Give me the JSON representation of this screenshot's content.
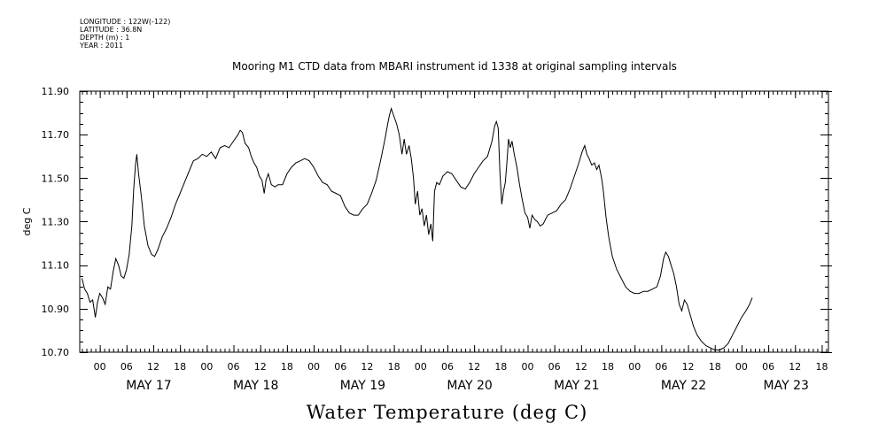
{
  "meta": {
    "longitude": "LONGITUDE : 122W(-122)",
    "latitude": "LATITUDE : 36.8N",
    "depth": "DEPTH (m) : 1",
    "year": "YEAR : 2011"
  },
  "chart_data": {
    "type": "line",
    "title": "Mooring M1 CTD data from MBARI instrument id 1338 at original sampling intervals",
    "xlabel": "Water Temperature (deg C)",
    "ylabel": "deg C",
    "ylim": [
      10.7,
      11.9
    ],
    "xlim_hours_from_may16_0000": [
      19.5,
      187.5
    ],
    "y_ticks": [
      "10.70",
      "10.90",
      "11.10",
      "11.30",
      "11.50",
      "11.70",
      "11.90"
    ],
    "hour_ticks": [
      {
        "hour": 24,
        "label": "00"
      },
      {
        "hour": 30,
        "label": "06"
      },
      {
        "hour": 36,
        "label": "12"
      },
      {
        "hour": 42,
        "label": "18"
      },
      {
        "hour": 48,
        "label": "00"
      },
      {
        "hour": 54,
        "label": "06"
      },
      {
        "hour": 60,
        "label": "12"
      },
      {
        "hour": 66,
        "label": "18"
      },
      {
        "hour": 72,
        "label": "00"
      },
      {
        "hour": 78,
        "label": "06"
      },
      {
        "hour": 84,
        "label": "12"
      },
      {
        "hour": 90,
        "label": "18"
      },
      {
        "hour": 96,
        "label": "00"
      },
      {
        "hour": 102,
        "label": "06"
      },
      {
        "hour": 108,
        "label": "12"
      },
      {
        "hour": 114,
        "label": "18"
      },
      {
        "hour": 120,
        "label": "00"
      },
      {
        "hour": 126,
        "label": "06"
      },
      {
        "hour": 132,
        "label": "12"
      },
      {
        "hour": 138,
        "label": "18"
      },
      {
        "hour": 144,
        "label": "00"
      },
      {
        "hour": 150,
        "label": "06"
      },
      {
        "hour": 156,
        "label": "12"
      },
      {
        "hour": 162,
        "label": "18"
      },
      {
        "hour": 168,
        "label": "00"
      },
      {
        "hour": 174,
        "label": "06"
      },
      {
        "hour": 180,
        "label": "12"
      },
      {
        "hour": 186,
        "label": "18"
      }
    ],
    "day_labels": [
      {
        "hour": 35,
        "label": "MAY 17"
      },
      {
        "hour": 59,
        "label": "MAY 18"
      },
      {
        "hour": 83,
        "label": "MAY 19"
      },
      {
        "hour": 107,
        "label": "MAY 20"
      },
      {
        "hour": 131,
        "label": "MAY 21"
      },
      {
        "hour": 155,
        "label": "MAY 22"
      },
      {
        "hour": 178,
        "label": "MAY 23"
      }
    ],
    "series": [
      {
        "points": [
          [
            20.0,
            11.04
          ],
          [
            20.6,
            10.99
          ],
          [
            21.2,
            10.97
          ],
          [
            21.8,
            10.93
          ],
          [
            22.4,
            10.94
          ],
          [
            23.0,
            10.86
          ],
          [
            23.5,
            10.93
          ],
          [
            24.0,
            10.97
          ],
          [
            24.6,
            10.95
          ],
          [
            25.2,
            10.92
          ],
          [
            25.8,
            11.0
          ],
          [
            26.4,
            10.99
          ],
          [
            27.0,
            11.07
          ],
          [
            27.6,
            11.13
          ],
          [
            28.2,
            11.1
          ],
          [
            28.8,
            11.05
          ],
          [
            29.4,
            11.04
          ],
          [
            30.0,
            11.08
          ],
          [
            30.6,
            11.15
          ],
          [
            31.2,
            11.28
          ],
          [
            31.6,
            11.45
          ],
          [
            32.0,
            11.56
          ],
          [
            32.3,
            11.61
          ],
          [
            32.7,
            11.52
          ],
          [
            33.3,
            11.42
          ],
          [
            34.0,
            11.28
          ],
          [
            34.8,
            11.19
          ],
          [
            35.6,
            11.15
          ],
          [
            36.3,
            11.14
          ],
          [
            37.0,
            11.17
          ],
          [
            38.0,
            11.23
          ],
          [
            39.0,
            11.27
          ],
          [
            40.0,
            11.32
          ],
          [
            41.0,
            11.38
          ],
          [
            42.0,
            11.43
          ],
          [
            43.0,
            11.48
          ],
          [
            44.0,
            11.53
          ],
          [
            45.0,
            11.58
          ],
          [
            46.0,
            11.59
          ],
          [
            47.0,
            11.61
          ],
          [
            48.0,
            11.6
          ],
          [
            49.0,
            11.62
          ],
          [
            50.0,
            11.59
          ],
          [
            51.0,
            11.64
          ],
          [
            52.0,
            11.65
          ],
          [
            53.0,
            11.64
          ],
          [
            54.0,
            11.67
          ],
          [
            55.0,
            11.7
          ],
          [
            55.5,
            11.72
          ],
          [
            56.0,
            11.71
          ],
          [
            56.6,
            11.66
          ],
          [
            57.4,
            11.64
          ],
          [
            58.0,
            11.6
          ],
          [
            58.6,
            11.57
          ],
          [
            59.2,
            11.55
          ],
          [
            59.8,
            11.51
          ],
          [
            60.4,
            11.49
          ],
          [
            60.9,
            11.43
          ],
          [
            61.3,
            11.49
          ],
          [
            61.8,
            11.52
          ],
          [
            62.5,
            11.47
          ],
          [
            63.3,
            11.46
          ],
          [
            64.0,
            11.47
          ],
          [
            65.0,
            11.47
          ],
          [
            66.0,
            11.52
          ],
          [
            67.0,
            11.55
          ],
          [
            68.0,
            11.57
          ],
          [
            69.0,
            11.58
          ],
          [
            70.0,
            11.59
          ],
          [
            71.0,
            11.58
          ],
          [
            72.0,
            11.55
          ],
          [
            73.0,
            11.51
          ],
          [
            74.0,
            11.48
          ],
          [
            75.0,
            11.47
          ],
          [
            76.0,
            11.44
          ],
          [
            77.0,
            11.43
          ],
          [
            78.0,
            11.42
          ],
          [
            79.0,
            11.37
          ],
          [
            80.0,
            11.34
          ],
          [
            81.0,
            11.33
          ],
          [
            82.0,
            11.33
          ],
          [
            83.0,
            11.36
          ],
          [
            84.0,
            11.38
          ],
          [
            85.0,
            11.43
          ],
          [
            86.0,
            11.49
          ],
          [
            87.0,
            11.58
          ],
          [
            88.0,
            11.68
          ],
          [
            88.6,
            11.75
          ],
          [
            89.0,
            11.79
          ],
          [
            89.4,
            11.82
          ],
          [
            89.9,
            11.79
          ],
          [
            90.6,
            11.75
          ],
          [
            91.2,
            11.7
          ],
          [
            91.8,
            11.61
          ],
          [
            92.3,
            11.68
          ],
          [
            92.8,
            11.61
          ],
          [
            93.4,
            11.65
          ],
          [
            93.9,
            11.59
          ],
          [
            94.4,
            11.5
          ],
          [
            94.8,
            11.38
          ],
          [
            95.3,
            11.44
          ],
          [
            95.8,
            11.33
          ],
          [
            96.3,
            11.36
          ],
          [
            96.8,
            11.28
          ],
          [
            97.3,
            11.33
          ],
          [
            97.8,
            11.24
          ],
          [
            98.3,
            11.29
          ],
          [
            98.7,
            11.21
          ],
          [
            99.1,
            11.44
          ],
          [
            99.6,
            11.48
          ],
          [
            100.2,
            11.47
          ],
          [
            101.0,
            11.51
          ],
          [
            102.0,
            11.53
          ],
          [
            103.0,
            11.52
          ],
          [
            104.0,
            11.49
          ],
          [
            105.0,
            11.46
          ],
          [
            106.0,
            11.45
          ],
          [
            107.0,
            11.48
          ],
          [
            108.0,
            11.52
          ],
          [
            109.0,
            11.55
          ],
          [
            110.0,
            11.58
          ],
          [
            111.0,
            11.6
          ],
          [
            112.0,
            11.67
          ],
          [
            112.6,
            11.74
          ],
          [
            113.0,
            11.76
          ],
          [
            113.4,
            11.73
          ],
          [
            113.8,
            11.52
          ],
          [
            114.2,
            11.38
          ],
          [
            114.6,
            11.44
          ],
          [
            115.0,
            11.48
          ],
          [
            115.3,
            11.56
          ],
          [
            115.7,
            11.68
          ],
          [
            116.1,
            11.64
          ],
          [
            116.5,
            11.67
          ],
          [
            117.0,
            11.61
          ],
          [
            117.6,
            11.55
          ],
          [
            118.2,
            11.47
          ],
          [
            118.8,
            11.4
          ],
          [
            119.4,
            11.34
          ],
          [
            120.0,
            11.32
          ],
          [
            120.5,
            11.27
          ],
          [
            121.0,
            11.33
          ],
          [
            121.6,
            11.31
          ],
          [
            122.2,
            11.3
          ],
          [
            122.8,
            11.28
          ],
          [
            123.5,
            11.29
          ],
          [
            124.5,
            11.33
          ],
          [
            125.5,
            11.34
          ],
          [
            126.5,
            11.35
          ],
          [
            127.5,
            11.38
          ],
          [
            128.5,
            11.4
          ],
          [
            129.5,
            11.45
          ],
          [
            130.5,
            11.51
          ],
          [
            131.5,
            11.57
          ],
          [
            132.2,
            11.62
          ],
          [
            132.8,
            11.65
          ],
          [
            133.3,
            11.61
          ],
          [
            133.8,
            11.59
          ],
          [
            134.4,
            11.56
          ],
          [
            135.0,
            11.57
          ],
          [
            135.5,
            11.54
          ],
          [
            136.0,
            11.56
          ],
          [
            136.6,
            11.5
          ],
          [
            137.0,
            11.44
          ],
          [
            137.6,
            11.32
          ],
          [
            138.2,
            11.23
          ],
          [
            139.0,
            11.14
          ],
          [
            140.0,
            11.08
          ],
          [
            141.0,
            11.04
          ],
          [
            142.0,
            11.0
          ],
          [
            143.0,
            10.98
          ],
          [
            144.0,
            10.97
          ],
          [
            145.0,
            10.97
          ],
          [
            146.0,
            10.98
          ],
          [
            147.0,
            10.98
          ],
          [
            148.0,
            10.99
          ],
          [
            149.0,
            11.0
          ],
          [
            149.8,
            11.05
          ],
          [
            150.5,
            11.13
          ],
          [
            151.0,
            11.16
          ],
          [
            151.6,
            11.14
          ],
          [
            152.2,
            11.1
          ],
          [
            152.8,
            11.06
          ],
          [
            153.4,
            11.0
          ],
          [
            154.0,
            10.92
          ],
          [
            154.6,
            10.89
          ],
          [
            155.2,
            10.94
          ],
          [
            155.8,
            10.92
          ],
          [
            156.5,
            10.87
          ],
          [
            157.2,
            10.82
          ],
          [
            158.0,
            10.78
          ],
          [
            159.0,
            10.75
          ],
          [
            160.0,
            10.73
          ],
          [
            161.0,
            10.72
          ],
          [
            162.0,
            10.71
          ],
          [
            163.0,
            10.71
          ],
          [
            164.0,
            10.72
          ],
          [
            165.0,
            10.74
          ],
          [
            166.0,
            10.78
          ],
          [
            167.0,
            10.82
          ],
          [
            168.0,
            10.86
          ],
          [
            169.0,
            10.89
          ],
          [
            169.8,
            10.92
          ],
          [
            170.4,
            10.95
          ]
        ]
      }
    ]
  }
}
